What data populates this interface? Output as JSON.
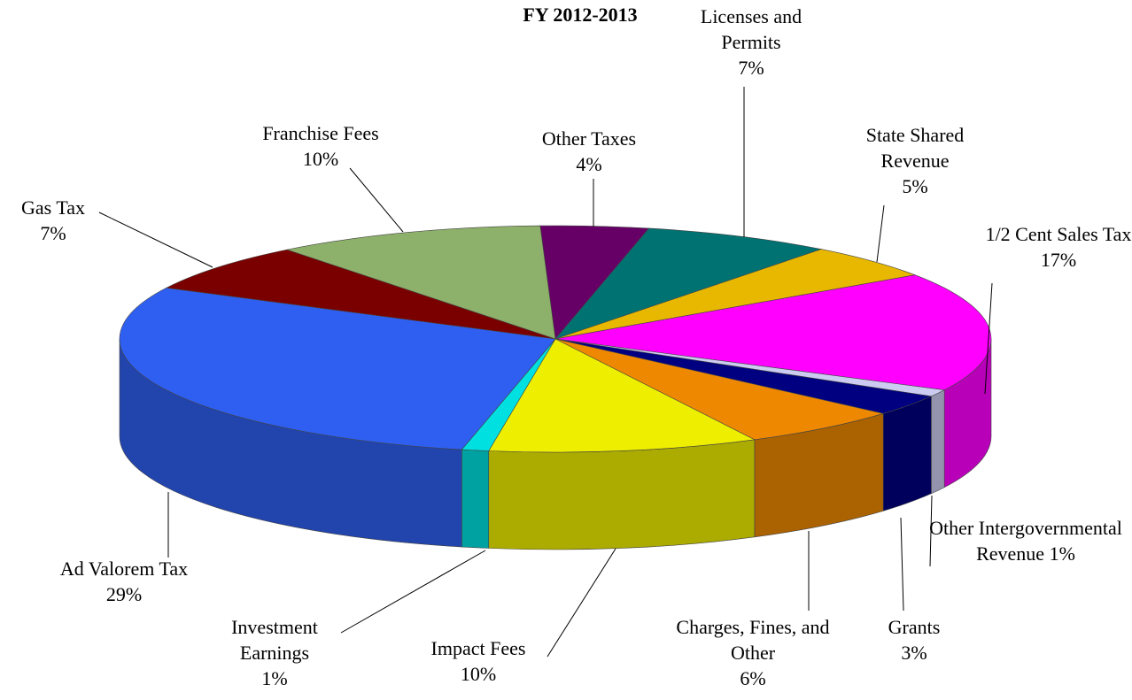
{
  "chart_data": {
    "type": "pie",
    "title": "FY 2012-2013",
    "categories": [
      "Other Taxes",
      "Licenses and Permits",
      "State Shared Revenue",
      "1/2 Cent Sales Tax",
      "Other Intergovernmental Revenue",
      "Grants",
      "Charges, Fines, and Other",
      "Impact Fees",
      "Investment Earnings",
      "Ad Valorem Tax",
      "Gas Tax",
      "Franchise Fees"
    ],
    "values": [
      4,
      7,
      5,
      17,
      1,
      3,
      6,
      10,
      1,
      29,
      7,
      10
    ],
    "value_labels": [
      "4%",
      "7%",
      "5%",
      "17%",
      "1%",
      "3%",
      "6%",
      "10%",
      "1%",
      "29%",
      "7%",
      "10%"
    ],
    "colors": [
      "#660066",
      "#007272",
      "#e8b800",
      "#ff00ff",
      "#ccccf2",
      "#000080",
      "#ee8800",
      "#eeee00",
      "#00e0e0",
      "#2e5ff0",
      "#7a0000",
      "#8db06a"
    ]
  }
}
